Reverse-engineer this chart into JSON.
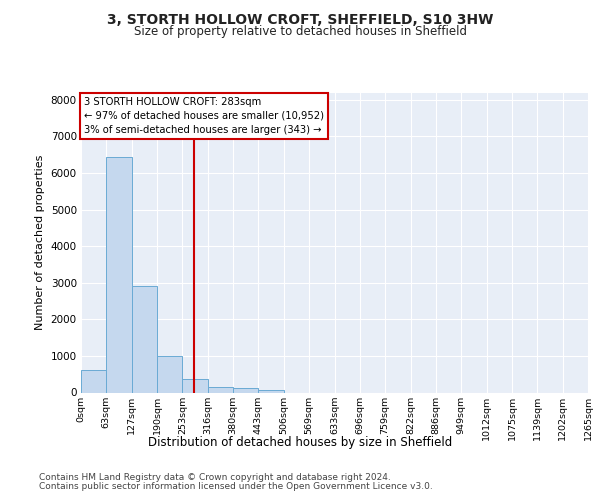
{
  "title1": "3, STORTH HOLLOW CROFT, SHEFFIELD, S10 3HW",
  "title2": "Size of property relative to detached houses in Sheffield",
  "xlabel": "Distribution of detached houses by size in Sheffield",
  "ylabel": "Number of detached properties",
  "bar_values": [
    620,
    6430,
    2920,
    1000,
    360,
    160,
    110,
    80,
    0,
    0,
    0,
    0,
    0,
    0,
    0,
    0,
    0,
    0,
    0,
    0
  ],
  "bin_labels": [
    "0sqm",
    "63sqm",
    "127sqm",
    "190sqm",
    "253sqm",
    "316sqm",
    "380sqm",
    "443sqm",
    "506sqm",
    "569sqm",
    "633sqm",
    "696sqm",
    "759sqm",
    "822sqm",
    "886sqm",
    "949sqm",
    "1012sqm",
    "1075sqm",
    "1139sqm",
    "1202sqm",
    "1265sqm"
  ],
  "bar_color": "#c5d8ee",
  "bar_edge_color": "#6aaad4",
  "vline_x": 4.45,
  "vline_color": "#cc0000",
  "annotation_line1": "3 STORTH HOLLOW CROFT: 283sqm",
  "annotation_line2": "← 97% of detached houses are smaller (10,952)",
  "annotation_line3": "3% of semi-detached houses are larger (343) →",
  "annotation_box_color": "#cc0000",
  "ylim": [
    0,
    8200
  ],
  "yticks": [
    0,
    1000,
    2000,
    3000,
    4000,
    5000,
    6000,
    7000,
    8000
  ],
  "footer_line1": "Contains HM Land Registry data © Crown copyright and database right 2024.",
  "footer_line2": "Contains public sector information licensed under the Open Government Licence v3.0.",
  "fig_bg_color": "#ffffff",
  "plot_bg_color": "#e8eef7",
  "grid_color": "#ffffff",
  "font_color": "#222222"
}
